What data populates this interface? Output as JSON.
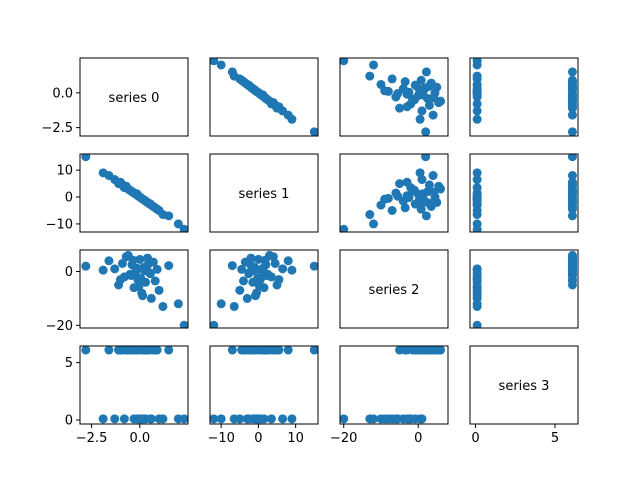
{
  "chart_data": {
    "type": "scatter",
    "layout": "scatter-matrix",
    "marker_color": "#1f77b4",
    "series_names": [
      "series 0",
      "series 1",
      "series 2",
      "series 3"
    ],
    "axis_ranges": [
      [
        -3.1,
        2.5
      ],
      [
        -13,
        16
      ],
      [
        -21,
        8
      ],
      [
        -0.35,
        6.45
      ]
    ],
    "row_ticks": [
      {
        "values": [
          0.0,
          -2.5
        ],
        "labels": [
          "0.0",
          "−2.5"
        ]
      },
      {
        "values": [
          10,
          0,
          -10
        ],
        "labels": [
          "10",
          "0",
          "−10"
        ]
      },
      {
        "values": [
          0,
          -20
        ],
        "labels": [
          "0",
          "−20"
        ]
      },
      {
        "values": [
          5,
          0
        ],
        "labels": [
          "5",
          "0"
        ]
      }
    ],
    "col_ticks": [
      {
        "values": [
          -2.5,
          0.0
        ],
        "labels": [
          "−2.5",
          "0.0"
        ]
      },
      {
        "values": [
          -10,
          0,
          10
        ],
        "labels": [
          "−10",
          "0",
          "10"
        ]
      },
      {
        "values": [
          -20,
          0
        ],
        "labels": [
          "−20",
          "0"
        ]
      },
      {
        "values": [
          0,
          5
        ],
        "labels": [
          "0",
          "5"
        ]
      }
    ],
    "series_data": {
      "series 0": [
        -2.8,
        -1.9,
        -1.6,
        -1.3,
        -1.1,
        -0.9,
        -0.8,
        -0.6,
        -0.5,
        -0.4,
        -0.3,
        -0.2,
        -0.1,
        0.0,
        0.1,
        0.2,
        0.3,
        0.4,
        0.5,
        0.6,
        0.7,
        0.8,
        0.9,
        1.0,
        1.2,
        1.5,
        2.0,
        2.3,
        -0.7,
        -0.45,
        -0.15,
        0.05,
        0.25,
        0.45,
        0.15,
        0.55,
        -0.35,
        -0.05,
        0.35,
        -1.0
      ],
      "series 1": [
        15.0,
        9.0,
        8.0,
        6.5,
        5.0,
        4.5,
        3.5,
        3.0,
        2.5,
        2.0,
        1.5,
        1.0,
        0.5,
        0.0,
        -0.5,
        -1.0,
        -1.5,
        -2.0,
        -2.5,
        -3.0,
        -3.5,
        -4.0,
        -4.5,
        -5.0,
        -6.5,
        -7.0,
        -10.0,
        -12.0,
        4.0,
        2.2,
        1.2,
        -0.2,
        -1.2,
        -2.2,
        -0.8,
        -2.6,
        1.8,
        0.3,
        -1.8,
        5.5
      ],
      "series 2": [
        2.0,
        0.5,
        4.0,
        1.0,
        -5.0,
        3.0,
        -2.0,
        6.0,
        -1.0,
        2.5,
        -6.0,
        0.0,
        -3.0,
        4.5,
        -8.0,
        1.5,
        -4.0,
        5.0,
        -0.5,
        -10.0,
        3.5,
        -3.5,
        0.8,
        -7.0,
        -13.0,
        2.2,
        -12.0,
        -20.0,
        5.5,
        -1.5,
        1.2,
        -2.5,
        0.3,
        2.8,
        -9.0,
        -0.8,
        4.2,
        -5.5,
        1.8,
        -3.0
      ],
      "series 3": [
        6.1,
        0.1,
        6.1,
        0.1,
        6.1,
        6.1,
        0.1,
        6.1,
        6.1,
        6.1,
        0.1,
        6.1,
        0.1,
        6.1,
        0.1,
        6.1,
        0.1,
        6.1,
        6.1,
        0.1,
        6.1,
        6.1,
        6.1,
        0.1,
        0.1,
        6.1,
        0.1,
        0.1,
        6.1,
        6.1,
        6.1,
        0.1,
        6.1,
        6.1,
        0.1,
        0.1,
        6.1,
        0.1,
        6.1,
        6.1
      ]
    }
  }
}
